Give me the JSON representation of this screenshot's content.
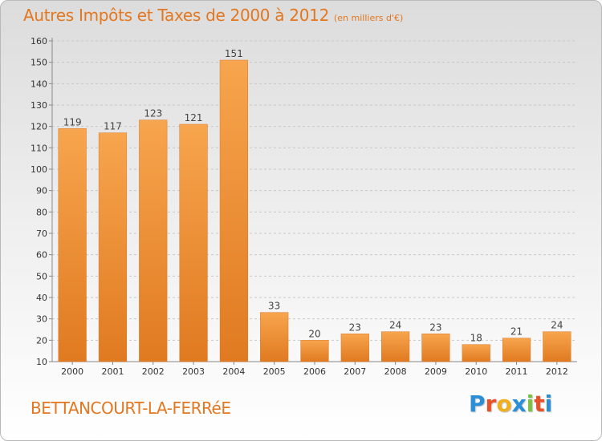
{
  "title": "Autres Impôts et Taxes de 2000 à 2012",
  "subtitle": "(en milliers d'€)",
  "commune": "BETTANCOURT-LA-FERRéE",
  "logo": {
    "letters": [
      {
        "ch": "P",
        "color": "#2a8fd6"
      },
      {
        "ch": "r",
        "color": "#e8502a"
      },
      {
        "ch": "o",
        "color": "#f0b01e"
      },
      {
        "ch": "x",
        "color": "#2a8fd6"
      },
      {
        "ch": "i",
        "color": "#7cc242"
      },
      {
        "ch": "t",
        "color": "#e8502a"
      },
      {
        "ch": "i",
        "color": "#2a8fd6"
      }
    ]
  },
  "colors": {
    "bar_top": "#f7a54e",
    "bar_bottom": "#e07a20",
    "accent": "#e3771f",
    "grid": "#c8c8c8"
  },
  "chart_data": {
    "type": "bar",
    "categories": [
      "2000",
      "2001",
      "2002",
      "2003",
      "2004",
      "2005",
      "2006",
      "2007",
      "2008",
      "2009",
      "2010",
      "2011",
      "2012"
    ],
    "values": [
      119,
      117,
      123,
      121,
      151,
      33,
      20,
      23,
      24,
      23,
      18,
      21,
      24
    ],
    "ylim": [
      10,
      160
    ],
    "yticks": [
      10,
      20,
      30,
      40,
      50,
      60,
      70,
      80,
      90,
      100,
      110,
      120,
      130,
      140,
      150,
      160
    ],
    "grid": true,
    "data_labels": true
  }
}
